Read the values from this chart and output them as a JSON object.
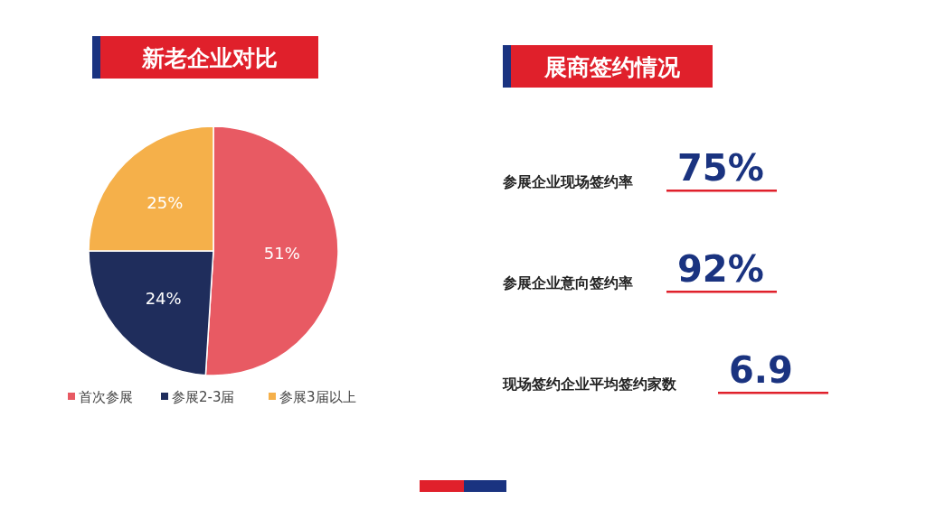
{
  "chart_data": [
    {
      "type": "pie",
      "title": "新老企业对比",
      "categories": [
        "首次参展",
        "参展2-3届",
        "参展3届以上"
      ],
      "values": [
        51,
        24,
        25
      ],
      "colors": [
        "#e85a63",
        "#1f2d5c",
        "#f5b04a"
      ],
      "value_labels": [
        "51%",
        "24%",
        "25%"
      ],
      "legend": "bottom"
    },
    {
      "type": "other",
      "title": "展商签约情况",
      "annotations": [
        "参展企业现场签约率",
        "75%",
        "参展企业意向签约率",
        "92%",
        "现场签约企业平均签约家数",
        "6.9"
      ]
    }
  ]
}
